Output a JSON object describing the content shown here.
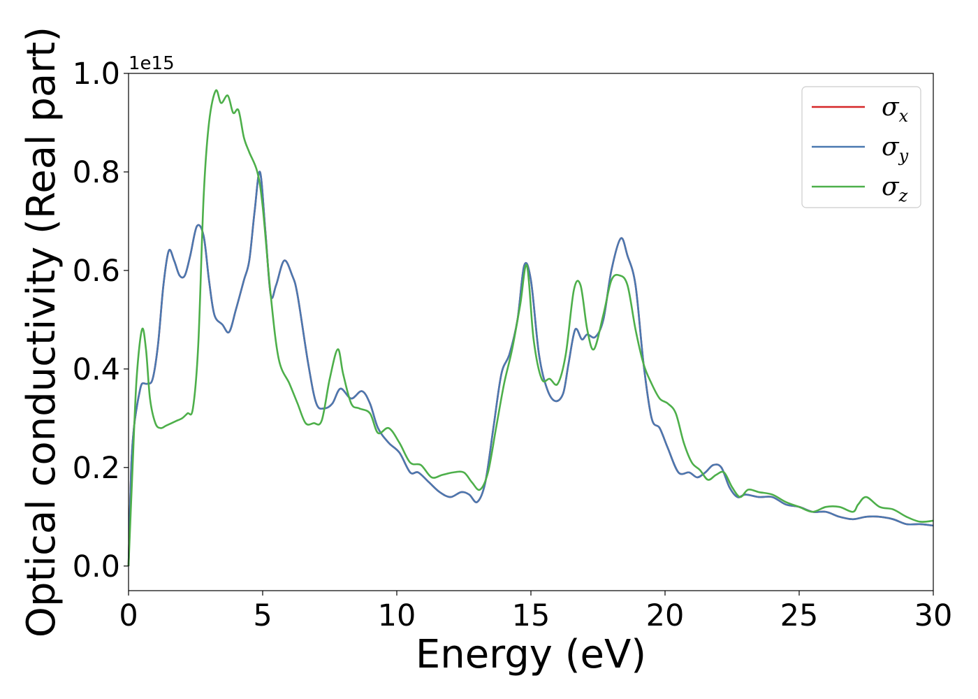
{
  "chart_data": {
    "type": "line",
    "xlabel": "Energy (eV)",
    "ylabel": "Optical conductivity (Real part)",
    "y_offset_label": "1e15",
    "xlim": [
      0,
      30
    ],
    "ylim": [
      -0.05,
      1.0
    ],
    "x_ticks": [
      0,
      5,
      10,
      15,
      20,
      25,
      30
    ],
    "x_tick_labels": [
      "0",
      "5",
      "10",
      "15",
      "20",
      "25",
      "30"
    ],
    "y_ticks": [
      0.0,
      0.2,
      0.4,
      0.6,
      0.8,
      1.0
    ],
    "y_tick_labels": [
      "0.0",
      "0.2",
      "0.4",
      "0.6",
      "0.8",
      "1.0"
    ],
    "grid": false,
    "legend_position": "top-right",
    "series": [
      {
        "name_base": "σ",
        "name_sub": "x",
        "color": "#d62728",
        "x": [
          0,
          0.1,
          0.2,
          0.3,
          0.4,
          0.5,
          0.7,
          0.9,
          1.1,
          1.3,
          1.5,
          1.7,
          1.9,
          2.1,
          2.3,
          2.55,
          2.8,
          3.0,
          3.2,
          3.5,
          3.75,
          4.0,
          4.3,
          4.5,
          4.7,
          4.9,
          5.1,
          5.3,
          5.5,
          5.8,
          6.1,
          6.3,
          6.7,
          7.0,
          7.3,
          7.6,
          7.9,
          8.3,
          8.7,
          9.0,
          9.3,
          9.7,
          10.1,
          10.5,
          10.8,
          11.2,
          11.6,
          12.0,
          12.4,
          12.7,
          13.0,
          13.3,
          13.6,
          13.9,
          14.2,
          14.5,
          14.75,
          15.0,
          15.3,
          15.6,
          15.9,
          16.2,
          16.4,
          16.65,
          16.9,
          17.1,
          17.4,
          17.7,
          18.0,
          18.35,
          18.6,
          18.9,
          19.2,
          19.5,
          19.8,
          20.1,
          20.5,
          20.9,
          21.2,
          21.5,
          21.8,
          22.1,
          22.4,
          22.7,
          23.0,
          23.5,
          24.0,
          24.5,
          25.0,
          25.5,
          26.0,
          26.5,
          27.0,
          27.5,
          28.0,
          28.5,
          29.0,
          29.5,
          30.0
        ],
        "y": [
          0.0,
          0.2,
          0.28,
          0.32,
          0.35,
          0.37,
          0.37,
          0.38,
          0.45,
          0.57,
          0.64,
          0.62,
          0.59,
          0.59,
          0.63,
          0.69,
          0.67,
          0.58,
          0.51,
          0.49,
          0.475,
          0.52,
          0.58,
          0.62,
          0.72,
          0.8,
          0.68,
          0.55,
          0.57,
          0.62,
          0.59,
          0.55,
          0.41,
          0.33,
          0.32,
          0.33,
          0.36,
          0.34,
          0.355,
          0.33,
          0.28,
          0.25,
          0.23,
          0.19,
          0.19,
          0.17,
          0.15,
          0.14,
          0.15,
          0.145,
          0.13,
          0.17,
          0.28,
          0.39,
          0.43,
          0.5,
          0.61,
          0.58,
          0.43,
          0.36,
          0.335,
          0.35,
          0.41,
          0.48,
          0.46,
          0.47,
          0.465,
          0.5,
          0.6,
          0.665,
          0.63,
          0.57,
          0.41,
          0.3,
          0.28,
          0.24,
          0.19,
          0.19,
          0.18,
          0.19,
          0.205,
          0.2,
          0.16,
          0.14,
          0.145,
          0.14,
          0.14,
          0.125,
          0.12,
          0.11,
          0.11,
          0.1,
          0.095,
          0.1,
          0.1,
          0.095,
          0.085,
          0.085,
          0.082
        ]
      },
      {
        "name_base": "σ",
        "name_sub": "y",
        "color": "#4a78b0",
        "x": [
          0,
          0.1,
          0.2,
          0.3,
          0.4,
          0.5,
          0.7,
          0.9,
          1.1,
          1.3,
          1.5,
          1.7,
          1.9,
          2.1,
          2.3,
          2.55,
          2.8,
          3.0,
          3.2,
          3.5,
          3.75,
          4.0,
          4.3,
          4.5,
          4.7,
          4.9,
          5.1,
          5.3,
          5.5,
          5.8,
          6.1,
          6.3,
          6.7,
          7.0,
          7.3,
          7.6,
          7.9,
          8.3,
          8.7,
          9.0,
          9.3,
          9.7,
          10.1,
          10.5,
          10.8,
          11.2,
          11.6,
          12.0,
          12.4,
          12.7,
          13.0,
          13.3,
          13.6,
          13.9,
          14.2,
          14.5,
          14.75,
          15.0,
          15.3,
          15.6,
          15.9,
          16.2,
          16.4,
          16.65,
          16.9,
          17.1,
          17.4,
          17.7,
          18.0,
          18.35,
          18.6,
          18.9,
          19.2,
          19.5,
          19.8,
          20.1,
          20.5,
          20.9,
          21.2,
          21.5,
          21.8,
          22.1,
          22.4,
          22.7,
          23.0,
          23.5,
          24.0,
          24.5,
          25.0,
          25.5,
          26.0,
          26.5,
          27.0,
          27.5,
          28.0,
          28.5,
          29.0,
          29.5,
          30.0
        ],
        "y": [
          0.0,
          0.2,
          0.28,
          0.32,
          0.35,
          0.37,
          0.37,
          0.38,
          0.45,
          0.57,
          0.64,
          0.62,
          0.59,
          0.59,
          0.63,
          0.69,
          0.67,
          0.58,
          0.51,
          0.49,
          0.475,
          0.52,
          0.58,
          0.62,
          0.72,
          0.8,
          0.68,
          0.55,
          0.57,
          0.62,
          0.59,
          0.55,
          0.41,
          0.33,
          0.32,
          0.33,
          0.36,
          0.34,
          0.355,
          0.33,
          0.28,
          0.25,
          0.23,
          0.19,
          0.19,
          0.17,
          0.15,
          0.14,
          0.15,
          0.145,
          0.13,
          0.17,
          0.28,
          0.39,
          0.43,
          0.5,
          0.61,
          0.58,
          0.43,
          0.36,
          0.335,
          0.35,
          0.41,
          0.48,
          0.46,
          0.47,
          0.465,
          0.5,
          0.6,
          0.665,
          0.63,
          0.57,
          0.41,
          0.3,
          0.28,
          0.24,
          0.19,
          0.19,
          0.18,
          0.19,
          0.205,
          0.2,
          0.16,
          0.14,
          0.145,
          0.14,
          0.14,
          0.125,
          0.12,
          0.11,
          0.11,
          0.1,
          0.095,
          0.1,
          0.1,
          0.095,
          0.085,
          0.085,
          0.082
        ]
      },
      {
        "name_base": "σ",
        "name_sub": "z",
        "color": "#4daf4a",
        "x": [
          0,
          0.15,
          0.3,
          0.5,
          0.65,
          0.8,
          1.0,
          1.2,
          1.4,
          1.6,
          1.8,
          2.0,
          2.2,
          2.4,
          2.6,
          2.8,
          3.0,
          3.25,
          3.45,
          3.7,
          3.9,
          4.1,
          4.3,
          4.5,
          4.8,
          5.0,
          5.3,
          5.6,
          6.0,
          6.3,
          6.6,
          6.9,
          7.2,
          7.5,
          7.8,
          8.0,
          8.3,
          8.6,
          9.0,
          9.3,
          9.7,
          10.1,
          10.5,
          10.9,
          11.3,
          11.7,
          12.1,
          12.5,
          12.8,
          13.1,
          13.4,
          13.7,
          14.0,
          14.3,
          14.6,
          14.85,
          15.1,
          15.4,
          15.7,
          16.0,
          16.3,
          16.6,
          16.85,
          17.1,
          17.35,
          17.7,
          18.0,
          18.3,
          18.6,
          18.9,
          19.2,
          19.5,
          19.8,
          20.1,
          20.4,
          20.7,
          21.0,
          21.3,
          21.6,
          21.9,
          22.2,
          22.5,
          22.8,
          23.1,
          23.5,
          24.0,
          24.5,
          25.0,
          25.5,
          26.0,
          26.5,
          27.0,
          27.2,
          27.5,
          28.0,
          28.5,
          29.0,
          29.5,
          30.0
        ],
        "y": [
          0.0,
          0.2,
          0.38,
          0.48,
          0.44,
          0.34,
          0.29,
          0.28,
          0.285,
          0.29,
          0.295,
          0.3,
          0.31,
          0.32,
          0.45,
          0.75,
          0.9,
          0.965,
          0.94,
          0.955,
          0.92,
          0.925,
          0.87,
          0.84,
          0.8,
          0.73,
          0.55,
          0.42,
          0.37,
          0.33,
          0.29,
          0.29,
          0.295,
          0.38,
          0.44,
          0.39,
          0.33,
          0.32,
          0.31,
          0.27,
          0.28,
          0.25,
          0.21,
          0.205,
          0.18,
          0.185,
          0.19,
          0.19,
          0.17,
          0.155,
          0.19,
          0.28,
          0.37,
          0.44,
          0.53,
          0.61,
          0.46,
          0.38,
          0.38,
          0.37,
          0.43,
          0.56,
          0.57,
          0.48,
          0.44,
          0.51,
          0.58,
          0.59,
          0.57,
          0.48,
          0.41,
          0.37,
          0.34,
          0.33,
          0.31,
          0.25,
          0.21,
          0.195,
          0.175,
          0.185,
          0.19,
          0.16,
          0.14,
          0.155,
          0.15,
          0.145,
          0.13,
          0.12,
          0.11,
          0.12,
          0.12,
          0.11,
          0.125,
          0.14,
          0.12,
          0.115,
          0.1,
          0.09,
          0.092
        ]
      }
    ]
  }
}
